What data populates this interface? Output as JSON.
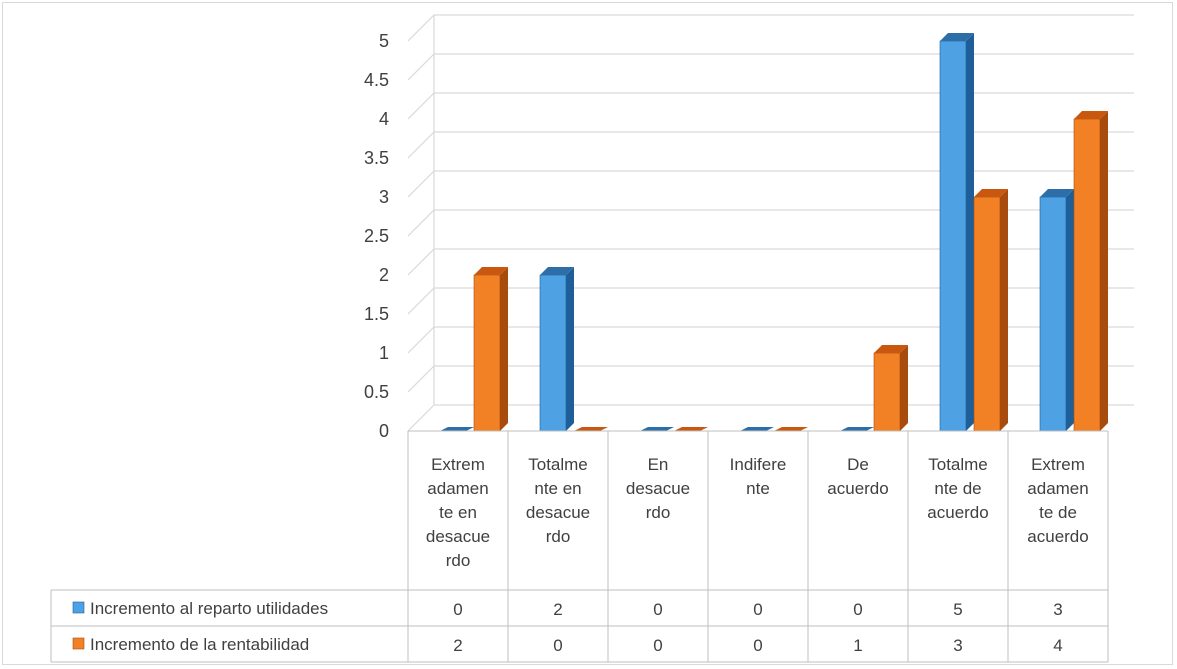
{
  "chart_data": {
    "type": "bar",
    "ylim": [
      0,
      5
    ],
    "yticks": [
      "0",
      "0.5",
      "1",
      "1.5",
      "2",
      "2.5",
      "3",
      "3.5",
      "4",
      "4.5",
      "5"
    ],
    "categories": [
      [
        "Extrem",
        "adamen",
        "te en",
        "desacue",
        "rdo"
      ],
      [
        "Totalme",
        "nte en",
        "desacue",
        "rdo"
      ],
      [
        "En",
        "desacue",
        "rdo"
      ],
      [
        "Indifere",
        "nte"
      ],
      [
        "De",
        "acuerdo"
      ],
      [
        "Totalme",
        "nte de",
        "acuerdo"
      ],
      [
        "Extrem",
        "adamen",
        "te de",
        "acuerdo"
      ]
    ],
    "series": [
      {
        "name": "Incremento al reparto utilidades",
        "values": [
          0,
          2,
          0,
          0,
          0,
          5,
          3
        ],
        "labels": [
          "0",
          "2",
          "0",
          "0",
          "0",
          "5",
          "3"
        ],
        "color": "#4ea1e3",
        "side_color": "#1f5f99",
        "top_color": "#2d6ea8"
      },
      {
        "name": "Incremento de la rentabilidad",
        "values": [
          2,
          0,
          0,
          0,
          1,
          3,
          4
        ],
        "labels": [
          "2",
          "0",
          "0",
          "0",
          "1",
          "3",
          "4"
        ],
        "color": "#f28125",
        "side_color": "#a84c0d",
        "top_color": "#c8580f"
      }
    ],
    "grid": true,
    "legend": "data-table"
  }
}
